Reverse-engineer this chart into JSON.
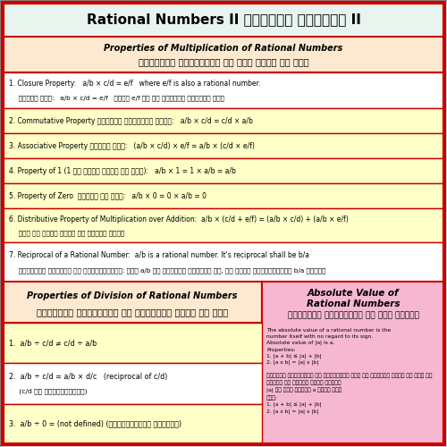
{
  "title": "Rational Numbers II परिमेय संख्या II",
  "title_bg": "#e8f5ee",
  "outer_bg": "#f5f5f5",
  "main_bg": "#ffffff",
  "header_mult_bg": "#fde8d0",
  "row_yellow": "#fffff0",
  "row_light_yellow": "#ffffd0",
  "header_div_bg": "#fde8d0",
  "abs_val_bg": "#f5b8d0",
  "border_color": "#cc0000",
  "section_mult_title_en": "Properties of Multiplication of Rational Numbers",
  "section_mult_title_hi": "पारिमेय संख्याओं के गुण करने के गुण",
  "section_div_title_en": "Properties of Division of Rational Numbers",
  "section_div_title_hi": "पारिमेय संख्याओं को विभाजित करने के गुण",
  "section_abs_title_en1": "Absolute Value of",
  "section_abs_title_en2": "Rational Numbers",
  "section_abs_title_hi": "पारिमेय संख्याओं का परम मूल्य"
}
